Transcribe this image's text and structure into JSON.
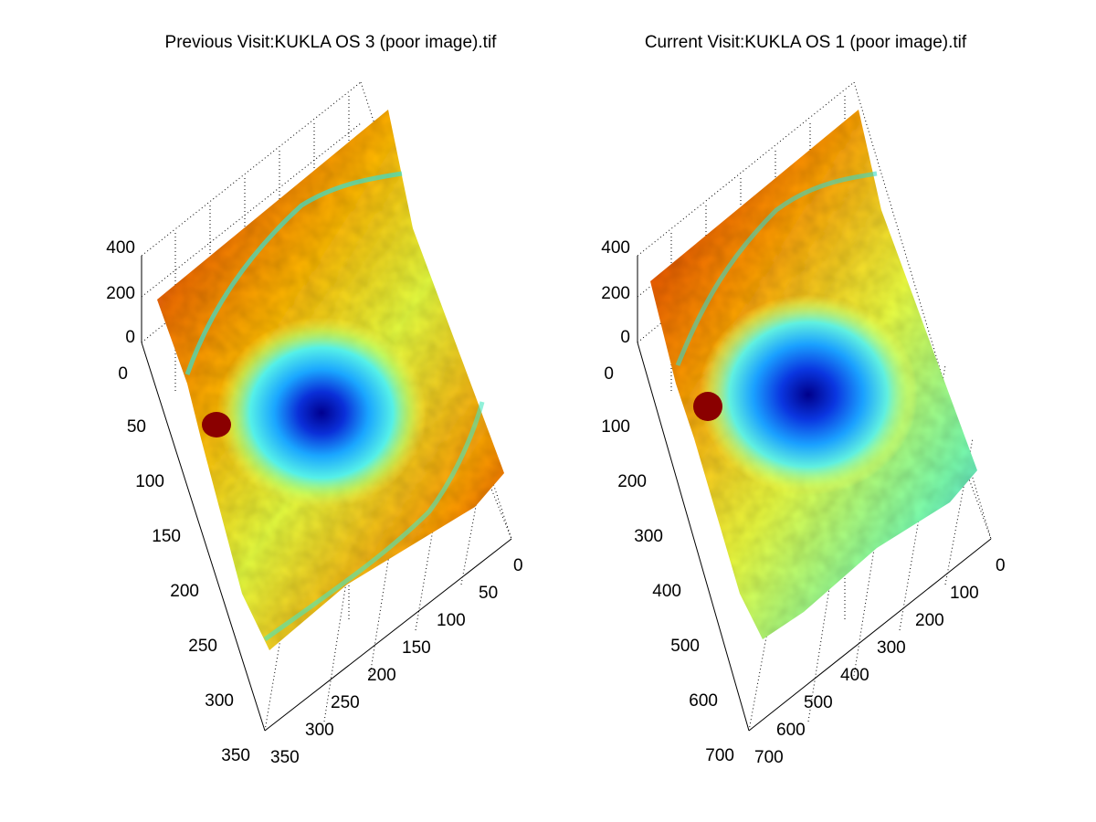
{
  "chart_data": [
    {
      "type": "surface",
      "title": "Previous Visit:KUKLA OS 3 (poor image).tif",
      "colormap": "jet",
      "grid": true,
      "z_ticks": [
        0,
        200,
        400
      ],
      "x_ticks": [
        0,
        50,
        100,
        150,
        200,
        250,
        300,
        350
      ],
      "y_ticks": [
        0,
        50,
        100,
        150,
        200,
        250,
        300,
        350
      ],
      "x_range": [
        0,
        350
      ],
      "y_range": [
        0,
        350
      ],
      "z_range": [
        0,
        400
      ]
    },
    {
      "type": "surface",
      "title": "Current Visit:KUKLA OS 1 (poor image).tif",
      "colormap": "jet",
      "grid": true,
      "z_ticks": [
        0,
        200,
        400
      ],
      "x_ticks": [
        0,
        100,
        200,
        300,
        400,
        500,
        600,
        700
      ],
      "y_ticks": [
        0,
        100,
        200,
        300,
        400,
        500,
        600,
        700
      ],
      "x_range": [
        0,
        700
      ],
      "y_range": [
        0,
        700
      ],
      "z_range": [
        0,
        400
      ]
    }
  ]
}
